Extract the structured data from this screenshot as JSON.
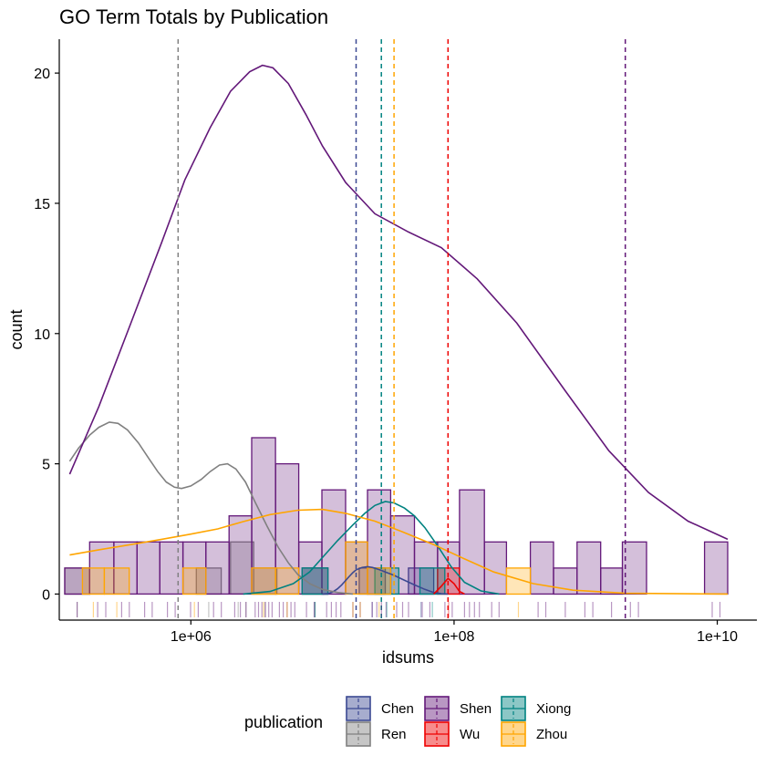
{
  "chart_data": {
    "type": "histogram",
    "title": "GO Term Totals by Publication",
    "xlabel": "idsums",
    "ylabel": "count",
    "x_scale": "log10",
    "xlim": [
      100000,
      20000000000
    ],
    "ylim": [
      -1.0,
      21.3
    ],
    "x_ticks": [
      {
        "value": 1000000,
        "label": "1e+06"
      },
      {
        "value": 100000000,
        "label": "1e+08"
      },
      {
        "value": 10000000000,
        "label": "1e+10"
      }
    ],
    "y_ticks": [
      {
        "value": 0,
        "label": "0"
      },
      {
        "value": 5,
        "label": "5"
      },
      {
        "value": 10,
        "label": "10"
      },
      {
        "value": 15,
        "label": "15"
      },
      {
        "value": 20,
        "label": "20"
      }
    ],
    "grid": false,
    "legend": {
      "title": "publication",
      "position": "bottom"
    },
    "series": [
      {
        "name": "Chen",
        "color": "#3b4992",
        "bins": [
          {
            "x0": 7000000,
            "x1": 11000000,
            "count": 1
          },
          {
            "x0": 19000000,
            "x1": 30000000,
            "count": 1
          },
          {
            "x0": 45000000,
            "x1": 70000000,
            "count": 1
          }
        ],
        "mean": 18000000,
        "density": [
          [
            10000000,
            0
          ],
          [
            11000000,
            0.02
          ],
          [
            12000000,
            0.08
          ],
          [
            13000000,
            0.2
          ],
          [
            14000000,
            0.35
          ],
          [
            15000000,
            0.52
          ],
          [
            16000000,
            0.68
          ],
          [
            17000000,
            0.82
          ],
          [
            18000000,
            0.93
          ],
          [
            20000000,
            1.02
          ],
          [
            22000000,
            1.05
          ],
          [
            24000000,
            1.02
          ],
          [
            27000000,
            0.94
          ],
          [
            30000000,
            0.85
          ],
          [
            35000000,
            0.72
          ],
          [
            40000000,
            0.58
          ],
          [
            50000000,
            0.35
          ],
          [
            60000000,
            0.18
          ],
          [
            70000000,
            0.06
          ],
          [
            80000000,
            0.01
          ],
          [
            90000000,
            0
          ]
        ]
      },
      {
        "name": "Ren",
        "color": "#808080",
        "bins": [
          {
            "x0": 110000,
            "x1": 170000,
            "count": 1
          },
          {
            "x0": 1100000,
            "x1": 1700000,
            "count": 1
          },
          {
            "x0": 2000000,
            "x1": 3000000,
            "count": 2
          },
          {
            "x0": 3000000,
            "x1": 4500000,
            "count": 1
          },
          {
            "x0": 7000000,
            "x1": 11000000,
            "count": 1
          }
        ],
        "mean": 800000,
        "density": [
          [
            120000,
            5.1
          ],
          [
            140000,
            5.6
          ],
          [
            170000,
            6.1
          ],
          [
            200000,
            6.4
          ],
          [
            240000,
            6.6
          ],
          [
            280000,
            6.55
          ],
          [
            330000,
            6.3
          ],
          [
            400000,
            5.8
          ],
          [
            480000,
            5.2
          ],
          [
            560000,
            4.7
          ],
          [
            650000,
            4.3
          ],
          [
            750000,
            4.1
          ],
          [
            850000,
            4.05
          ],
          [
            1000000,
            4.15
          ],
          [
            1200000,
            4.4
          ],
          [
            1400000,
            4.7
          ],
          [
            1650000,
            4.95
          ],
          [
            1900000,
            5.0
          ],
          [
            2200000,
            4.8
          ],
          [
            2600000,
            4.3
          ],
          [
            3100000,
            3.5
          ],
          [
            3800000,
            2.6
          ],
          [
            4600000,
            1.8
          ],
          [
            5500000,
            1.2
          ],
          [
            6500000,
            0.75
          ],
          [
            8000000,
            0.4
          ],
          [
            10000000,
            0.18
          ],
          [
            13000000,
            0.06
          ],
          [
            17000000,
            0
          ]
        ]
      },
      {
        "name": "Shen",
        "color": "#631879",
        "bins": [
          {
            "x0": 110000,
            "x1": 170000,
            "count": 1
          },
          {
            "x0": 170000,
            "x1": 260000,
            "count": 2
          },
          {
            "x0": 260000,
            "x1": 390000,
            "count": 2
          },
          {
            "x0": 390000,
            "x1": 580000,
            "count": 2
          },
          {
            "x0": 580000,
            "x1": 870000,
            "count": 2
          },
          {
            "x0": 870000,
            "x1": 1300000,
            "count": 2
          },
          {
            "x0": 1300000,
            "x1": 1950000,
            "count": 2
          },
          {
            "x0": 1950000,
            "x1": 2900000,
            "count": 3
          },
          {
            "x0": 2900000,
            "x1": 4400000,
            "count": 6
          },
          {
            "x0": 4400000,
            "x1": 6600000,
            "count": 5
          },
          {
            "x0": 6600000,
            "x1": 9900000,
            "count": 2
          },
          {
            "x0": 9900000,
            "x1": 15000000,
            "count": 4
          },
          {
            "x0": 15000000,
            "x1": 22000000,
            "count": 2
          },
          {
            "x0": 22000000,
            "x1": 33000000,
            "count": 4
          },
          {
            "x0": 33000000,
            "x1": 50000000,
            "count": 3
          },
          {
            "x0": 50000000,
            "x1": 75000000,
            "count": 2
          },
          {
            "x0": 75000000,
            "x1": 110000000,
            "count": 2
          },
          {
            "x0": 110000000,
            "x1": 170000000,
            "count": 4
          },
          {
            "x0": 170000000,
            "x1": 250000000,
            "count": 2
          },
          {
            "x0": 380000000,
            "x1": 570000000,
            "count": 2
          },
          {
            "x0": 570000000,
            "x1": 860000000,
            "count": 1
          },
          {
            "x0": 860000000,
            "x1": 1300000000,
            "count": 2
          },
          {
            "x0": 1300000000,
            "x1": 1900000000,
            "count": 1
          },
          {
            "x0": 1900000000,
            "x1": 2900000000,
            "count": 2
          },
          {
            "x0": 8000000000,
            "x1": 12000000000,
            "count": 2
          }
        ],
        "mean": 2000000000,
        "density": [
          [
            120000,
            4.6
          ],
          [
            200000,
            7.2
          ],
          [
            350000,
            10.4
          ],
          [
            600000,
            13.5
          ],
          [
            900000,
            15.9
          ],
          [
            1400000,
            17.9
          ],
          [
            2000000,
            19.3
          ],
          [
            2800000,
            20.05
          ],
          [
            3500000,
            20.3
          ],
          [
            4200000,
            20.2
          ],
          [
            5500000,
            19.6
          ],
          [
            7500000,
            18.4
          ],
          [
            10000000,
            17.2
          ],
          [
            15000000,
            15.8
          ],
          [
            25000000,
            14.6
          ],
          [
            45000000,
            13.9
          ],
          [
            80000000,
            13.3
          ],
          [
            150000000,
            12.1
          ],
          [
            300000000,
            10.4
          ],
          [
            700000000,
            7.8
          ],
          [
            1500000000,
            5.5
          ],
          [
            3000000000,
            3.9
          ],
          [
            6000000000,
            2.8
          ],
          [
            12000000000,
            2.1
          ]
        ]
      },
      {
        "name": "Wu",
        "color": "#ee0000",
        "bins": [
          {
            "x0": 75000000,
            "x1": 110000000,
            "count": 1
          }
        ],
        "mean": 90000000,
        "density": [
          [
            70000000,
            0
          ],
          [
            80000000,
            0.3
          ],
          [
            90000000,
            0.6
          ],
          [
            100000000,
            0.4
          ],
          [
            110000000,
            0.1
          ],
          [
            120000000,
            0
          ]
        ]
      },
      {
        "name": "Xiong",
        "color": "#008280",
        "bins": [
          {
            "x0": 7000000,
            "x1": 11000000,
            "count": 1
          },
          {
            "x0": 25000000,
            "x1": 38000000,
            "count": 1
          },
          {
            "x0": 55000000,
            "x1": 85000000,
            "count": 1
          }
        ],
        "mean": 28000000,
        "density": [
          [
            2500000,
            0
          ],
          [
            4000000,
            0.1
          ],
          [
            6000000,
            0.4
          ],
          [
            8000000,
            0.85
          ],
          [
            10000000,
            1.4
          ],
          [
            13000000,
            2.05
          ],
          [
            17000000,
            2.65
          ],
          [
            21000000,
            3.1
          ],
          [
            25000000,
            3.4
          ],
          [
            30000000,
            3.55
          ],
          [
            35000000,
            3.5
          ],
          [
            42000000,
            3.3
          ],
          [
            50000000,
            3.0
          ],
          [
            60000000,
            2.55
          ],
          [
            75000000,
            1.85
          ],
          [
            95000000,
            1.05
          ],
          [
            120000000,
            0.45
          ],
          [
            160000000,
            0.12
          ],
          [
            220000000,
            0
          ]
        ]
      },
      {
        "name": "Zhou",
        "color": "#ffa500",
        "bins": [
          {
            "x0": 150000,
            "x1": 220000,
            "count": 1
          },
          {
            "x0": 220000,
            "x1": 340000,
            "count": 1
          },
          {
            "x0": 870000,
            "x1": 1300000,
            "count": 1
          },
          {
            "x0": 2900000,
            "x1": 4400000,
            "count": 1
          },
          {
            "x0": 4400000,
            "x1": 6600000,
            "count": 1
          },
          {
            "x0": 15000000,
            "x1": 22000000,
            "count": 2
          },
          {
            "x0": 22000000,
            "x1": 33000000,
            "count": 1
          },
          {
            "x0": 250000000,
            "x1": 380000000,
            "count": 1
          }
        ],
        "mean": 35000000,
        "density": [
          [
            120000,
            1.5
          ],
          [
            200000,
            1.7
          ],
          [
            350000,
            1.9
          ],
          [
            600000,
            2.1
          ],
          [
            1000000,
            2.3
          ],
          [
            1600000,
            2.5
          ],
          [
            2500000,
            2.78
          ],
          [
            4000000,
            3.05
          ],
          [
            6500000,
            3.22
          ],
          [
            10000000,
            3.25
          ],
          [
            15000000,
            3.1
          ],
          [
            25000000,
            2.8
          ],
          [
            40000000,
            2.4
          ],
          [
            70000000,
            1.9
          ],
          [
            120000000,
            1.35
          ],
          [
            200000000,
            0.85
          ],
          [
            400000000,
            0.4
          ],
          [
            800000000,
            0.15
          ],
          [
            2000000000,
            0.03
          ],
          [
            12000000000,
            0
          ]
        ]
      }
    ]
  }
}
